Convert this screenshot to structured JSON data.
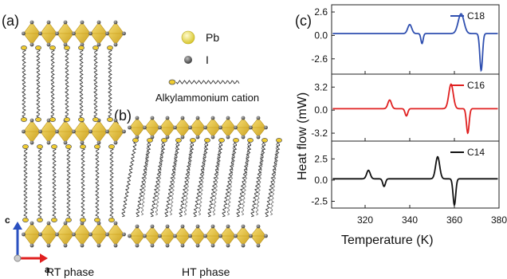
{
  "panel_labels": {
    "a": "(a)",
    "b": "(b)",
    "c": "(c)"
  },
  "legend": {
    "pb": "Pb",
    "i": "I",
    "cation": "Alkylammonium cation"
  },
  "axis_arrows": {
    "c": "c",
    "a": "a"
  },
  "phase_labels": {
    "rt": "RT phase",
    "ht": "HT phase"
  },
  "colors": {
    "pb_atom": "#e8d85a",
    "octahedra": "#e0b820",
    "iodine": "#666666",
    "c18": "#3050b0",
    "c16": "#e02020",
    "c14": "#111111"
  },
  "chart_data": {
    "type": "line",
    "xlabel": "Temperature (K)",
    "ylabel": "Heat flow (mW)",
    "xlim": [
      305,
      380
    ],
    "xticks": [
      320,
      340,
      360,
      380
    ],
    "panels": [
      {
        "series": "C18",
        "color": "#3050b0",
        "ylim": [
          -4.3,
          3.4
        ],
        "yticks": [
          2.6,
          0.0,
          -2.6
        ],
        "ytick_labels": [
          "2.6",
          "0.0",
          "-2.6"
        ],
        "baseline": 0.2,
        "peaks": [
          {
            "x": 340,
            "h": 1.0,
            "w": 0.9
          },
          {
            "x": 345.5,
            "h": -1.1,
            "w": 0.5
          },
          {
            "x": 363,
            "h": 2.2,
            "w": 1.3
          },
          {
            "x": 372,
            "h": -4.1,
            "w": 0.6
          }
        ]
      },
      {
        "series": "C16",
        "color": "#e02020",
        "ylim": [
          -4.3,
          5.0
        ],
        "yticks": [
          3.2,
          0.0,
          -3.2
        ],
        "ytick_labels": [
          "3.2",
          "0.0",
          "-3.2"
        ],
        "baseline": 0.2,
        "peaks": [
          {
            "x": 331,
            "h": 1.2,
            "w": 0.8
          },
          {
            "x": 338.5,
            "h": -1.0,
            "w": 0.6
          },
          {
            "x": 358.5,
            "h": 3.4,
            "w": 1.0
          },
          {
            "x": 366,
            "h": -3.4,
            "w": 0.6
          }
        ]
      },
      {
        "series": "C14",
        "color": "#111111",
        "ylim": [
          -3.3,
          4.6
        ],
        "yticks": [
          2.5,
          0.0,
          -2.5
        ],
        "ytick_labels": [
          "2.5",
          "0.0",
          "-2.5"
        ],
        "baseline": 0.15,
        "peaks": [
          {
            "x": 321.5,
            "h": 1.0,
            "w": 0.8
          },
          {
            "x": 328.5,
            "h": -0.9,
            "w": 0.6
          },
          {
            "x": 352.5,
            "h": 2.6,
            "w": 0.9
          },
          {
            "x": 360,
            "h": -3.1,
            "w": 0.6
          }
        ]
      }
    ]
  }
}
